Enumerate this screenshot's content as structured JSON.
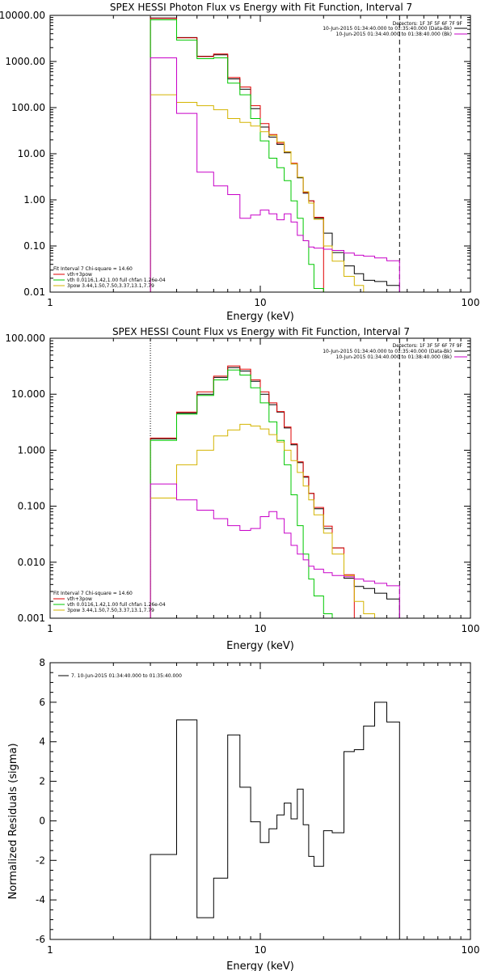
{
  "chart_data": [
    {
      "type": "line",
      "title": "SPEX HESSI Photon Flux vs Energy with Fit Function, Interval 7",
      "xlabel": "Energy (keV)",
      "ylabel": "",
      "xscale": "log",
      "yscale": "log",
      "xlim": [
        1,
        100
      ],
      "ylim": [
        0.01,
        10000
      ],
      "x_ticks": [
        1,
        10,
        100
      ],
      "x_tick_labels": [
        "1",
        "10",
        "100"
      ],
      "y_ticks": [
        0.01,
        0.1,
        1,
        10,
        100,
        1000,
        10000
      ],
      "y_tick_labels": [
        "0.01",
        "0.10",
        "1.00",
        "10.00",
        "100.00",
        "1000.00",
        "10000.00"
      ],
      "vlines": [
        {
          "x": 3.0,
          "style": "dotted",
          "color": "#d4a800"
        },
        {
          "x": 46,
          "style": "dashed",
          "color": "#000000"
        }
      ],
      "legend_top": {
        "placement": "top-right",
        "header": "Detectors: 1F 3F 5F 6F 7F 9F",
        "entries": [
          {
            "text": "10-Jun-2015 01:34:40.000 to 01:35:40.000 (Data-Bk)",
            "color": "#000000"
          },
          {
            "text": "10-Jun-2015 01:34:40.000 to 01:38:40.000 (Bk)",
            "color": "#c800c8"
          }
        ]
      },
      "legend_bottom": {
        "placement": "bottom-left",
        "header": "Fit Interval 7   Chi-square = 14.60",
        "entries": [
          {
            "text": "vth+3pow",
            "color": "#e00000"
          },
          {
            "text": "vth 0.0116,1.42,1.00  full chfan 1.26e-04",
            "color": "#00c800"
          },
          {
            "text": "3pow 3.44,1.50,7.50,3.37,13.1,7.79",
            "color": "#d4b400"
          }
        ]
      },
      "edges": [
        3.0,
        3.5,
        4.0,
        4.5,
        5.0,
        5.5,
        6.0,
        6.5,
        7.0,
        7.5,
        8.0,
        8.5,
        9.0,
        9.5,
        10.0,
        11.0,
        12.0,
        13.0,
        14.0,
        15.0,
        16.0,
        17.0,
        18.0,
        20.0,
        22.0,
        25.0,
        28.0,
        31.0,
        35.0,
        40.0,
        46.0
      ],
      "series": [
        {
          "name": "Data-Bk",
          "color": "#000000",
          "values": [
            8800,
            8800,
            3300,
            3300,
            1300,
            1300,
            1400,
            1400,
            420,
            420,
            250,
            250,
            95,
            95,
            38,
            23,
            16,
            10.5,
            6.0,
            3.0,
            1.4,
            0.95,
            0.4,
            0.19,
            0.072,
            0.037,
            0.025,
            0.018,
            0.017,
            0.014
          ]
        },
        {
          "name": "vth+3pow",
          "color": "#e00000",
          "values": [
            8600,
            8600,
            3250,
            3250,
            1280,
            1280,
            1450,
            1450,
            450,
            450,
            280,
            280,
            110,
            110,
            45,
            26,
            17,
            11.0,
            6.2,
            3.1,
            1.45,
            0.95,
            0.42
          ]
        },
        {
          "name": "vth",
          "color": "#00c800",
          "values": [
            8000,
            8000,
            2900,
            2900,
            1150,
            1150,
            1200,
            1200,
            340,
            340,
            190,
            190,
            58,
            58,
            19,
            8.0,
            5.0,
            2.6,
            0.95,
            0.4,
            0.13,
            0.04,
            0.012
          ]
        },
        {
          "name": "3pow",
          "color": "#d4b400",
          "values": [
            190,
            190,
            130,
            130,
            110,
            110,
            90,
            90,
            58,
            58,
            48,
            48,
            40,
            40,
            30,
            25,
            18,
            11,
            6.0,
            3.1,
            1.5,
            0.85,
            0.38,
            0.1,
            0.047,
            0.022,
            0.014
          ]
        },
        {
          "name": "Bk",
          "color": "#c800c8",
          "values": [
            1200,
            1200,
            75,
            75,
            4.0,
            4.0,
            2.0,
            2.0,
            1.3,
            1.3,
            0.4,
            0.4,
            0.47,
            0.47,
            0.6,
            0.5,
            0.37,
            0.5,
            0.33,
            0.17,
            0.13,
            0.095,
            0.09,
            0.085,
            0.08,
            0.07,
            0.063,
            0.06,
            0.055,
            0.048
          ]
        }
      ]
    },
    {
      "type": "line",
      "title": "SPEX HESSI Count Flux vs Energy with Fit Function, Interval 7",
      "xlabel": "Energy (keV)",
      "ylabel": "",
      "xscale": "log",
      "yscale": "log",
      "xlim": [
        1,
        100
      ],
      "ylim": [
        0.001,
        100
      ],
      "x_ticks": [
        1,
        10,
        100
      ],
      "x_tick_labels": [
        "1",
        "10",
        "100"
      ],
      "y_ticks": [
        0.001,
        0.01,
        0.1,
        1,
        10,
        100
      ],
      "y_tick_labels": [
        "0.001",
        "0.010",
        "0.100",
        "1.000",
        "10.000",
        "100.000"
      ],
      "vlines": [
        {
          "x": 3.0,
          "style": "dotted",
          "color": "#000000"
        },
        {
          "x": 46,
          "style": "dashed",
          "color": "#000000"
        }
      ],
      "legend_top": {
        "placement": "top-right",
        "header": "Detectors: 1F 3F 5F 6F 7F 9F",
        "entries": [
          {
            "text": "10-Jun-2015 01:34:40.000 to 01:35:40.000 (Data-Bk)",
            "color": "#000000"
          },
          {
            "text": "10-Jun-2015 01:34:40.000 to 01:38:40.000 (Bk)",
            "color": "#c800c8"
          }
        ]
      },
      "legend_bottom": {
        "placement": "bottom-left",
        "header": "Fit Interval 7   Chi-square = 14.60",
        "entries": [
          {
            "text": "vth+3pow",
            "color": "#e00000"
          },
          {
            "text": "vth 0.0116,1.42,1.00  full chfan 1.26e-04",
            "color": "#00c800"
          },
          {
            "text": "3pow 3.44,1.50,7.50,3.37,13.1,7.79",
            "color": "#d4b400"
          }
        ]
      },
      "edges": [
        3.0,
        3.5,
        4.0,
        4.5,
        5.0,
        5.5,
        6.0,
        6.5,
        7.0,
        7.5,
        8.0,
        8.5,
        9.0,
        9.5,
        10.0,
        11.0,
        12.0,
        13.0,
        14.0,
        15.0,
        16.0,
        17.0,
        18.0,
        20.0,
        22.0,
        25.0,
        28.0,
        31.0,
        35.0,
        40.0,
        46.0
      ],
      "series": [
        {
          "name": "Data-Bk",
          "color": "#000000",
          "values": [
            1.6,
            1.6,
            4.6,
            4.6,
            10,
            10,
            20,
            20,
            30,
            30,
            26,
            26,
            17,
            17,
            10,
            6.5,
            4.8,
            2.5,
            1.25,
            0.6,
            0.33,
            0.17,
            0.09,
            0.04,
            0.018,
            0.0052,
            0.0037,
            0.0034,
            0.0028,
            0.0022
          ]
        },
        {
          "name": "vth+3pow",
          "color": "#e00000",
          "values": [
            1.65,
            1.65,
            4.8,
            4.8,
            11,
            11,
            21,
            21,
            32,
            32,
            28,
            28,
            18,
            18,
            11,
            7.0,
            4.9,
            2.6,
            1.3,
            0.62,
            0.34,
            0.17,
            0.095,
            0.044,
            0.018,
            0.006
          ]
        },
        {
          "name": "vth",
          "color": "#00c800",
          "values": [
            1.5,
            1.5,
            4.4,
            4.4,
            9.5,
            9.5,
            18,
            18,
            27,
            27,
            22,
            22,
            13,
            13,
            7.0,
            3.2,
            1.5,
            0.55,
            0.16,
            0.045,
            0.014,
            0.005,
            0.0025,
            0.0012
          ]
        },
        {
          "name": "3pow",
          "color": "#d4b400",
          "values": [
            0.14,
            0.14,
            0.55,
            0.55,
            1.0,
            1.0,
            1.8,
            1.8,
            2.3,
            2.3,
            2.9,
            2.9,
            2.7,
            2.7,
            2.4,
            1.9,
            1.4,
            1.0,
            0.65,
            0.4,
            0.23,
            0.13,
            0.07,
            0.033,
            0.014,
            0.0058,
            0.002,
            0.0012
          ]
        },
        {
          "name": "Bk",
          "color": "#c800c8",
          "values": [
            0.25,
            0.25,
            0.13,
            0.13,
            0.085,
            0.085,
            0.06,
            0.06,
            0.045,
            0.045,
            0.037,
            0.037,
            0.04,
            0.04,
            0.065,
            0.08,
            0.06,
            0.033,
            0.02,
            0.014,
            0.011,
            0.0085,
            0.0075,
            0.0065,
            0.0058,
            0.0055,
            0.005,
            0.0046,
            0.0042,
            0.0038
          ]
        }
      ]
    },
    {
      "type": "line",
      "title": "",
      "xlabel": "Energy (keV)",
      "ylabel": "Normalized Residuals (sigma)",
      "xscale": "log",
      "yscale": "linear",
      "xlim": [
        1,
        100
      ],
      "ylim": [
        -6,
        8
      ],
      "x_ticks": [
        1,
        10,
        100
      ],
      "x_tick_labels": [
        "1",
        "10",
        "100"
      ],
      "y_ticks": [
        -6,
        -4,
        -2,
        0,
        2,
        4,
        6,
        8
      ],
      "y_tick_labels": [
        "-6",
        "-4",
        "-2",
        "0",
        "2",
        "4",
        "6",
        "8"
      ],
      "legend": {
        "placement": "top-left",
        "entries": [
          {
            "text": "7. 10-Jun-2015 01:34:40.000 to 01:35:40.000",
            "color": "#000000"
          }
        ]
      },
      "edges": [
        3.0,
        3.5,
        4.0,
        4.5,
        5.0,
        5.5,
        6.0,
        6.5,
        7.0,
        7.5,
        8.0,
        8.5,
        9.0,
        9.5,
        10.0,
        11.0,
        12.0,
        13.0,
        14.0,
        15.0,
        16.0,
        17.0,
        18.0,
        20.0,
        22.0,
        25.0,
        28.0,
        31.0,
        35.0,
        40.0,
        46.0
      ],
      "series": [
        {
          "name": "residuals",
          "color": "#000000",
          "values": [
            -1.7,
            -1.7,
            5.1,
            5.1,
            -4.9,
            -4.9,
            -2.9,
            -2.9,
            4.35,
            4.35,
            1.7,
            1.7,
            -0.05,
            -0.05,
            -1.1,
            -0.4,
            0.3,
            0.9,
            0.1,
            1.6,
            -0.2,
            -1.8,
            -2.3,
            -0.5,
            -0.6,
            3.5,
            3.6,
            4.8,
            6.0,
            5.0
          ]
        }
      ]
    }
  ]
}
